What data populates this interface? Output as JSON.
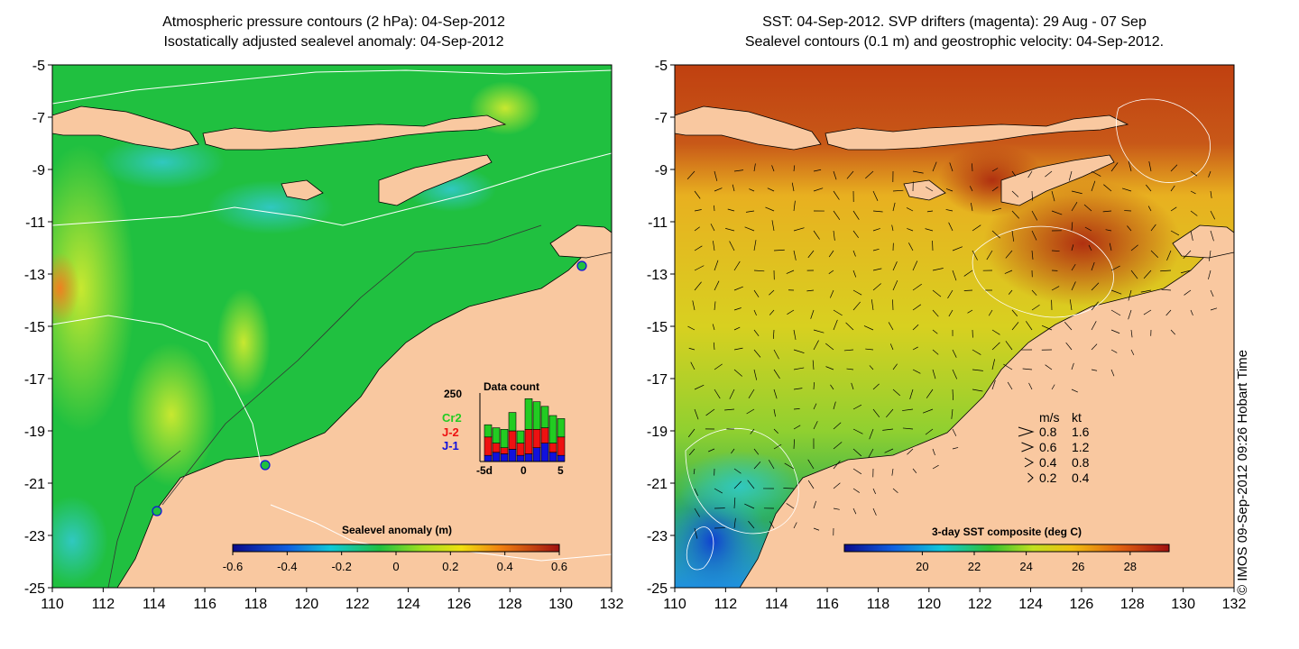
{
  "left_panel": {
    "title_line1": "Atmospheric pressure contours (2 hPa): 04-Sep-2012",
    "title_line2": "Isostatically adjusted sealevel anomaly: 04-Sep-2012",
    "colorbar_label": "Sealevel anomaly (m)",
    "colorbar_ticks": [
      "-0.6",
      "-0.4",
      "-0.2",
      "0",
      "0.2",
      "0.4",
      "0.6"
    ],
    "data_count": {
      "title": "Data count",
      "ymax_label": "250",
      "x_ticks": [
        "-5d",
        "0",
        "5"
      ],
      "legend": [
        {
          "name": "Cr2",
          "color": "#22cc22"
        },
        {
          "name": "J-2",
          "color": "#ee1111"
        },
        {
          "name": "J-1",
          "color": "#1111dd"
        }
      ],
      "days": [
        -5,
        -4,
        -3,
        -2,
        -1,
        0,
        1,
        2,
        3,
        4
      ],
      "series": [
        {
          "name": "J-1",
          "values": [
            20,
            30,
            25,
            40,
            20,
            25,
            45,
            60,
            30,
            20
          ]
        },
        {
          "name": "J-2",
          "values": [
            60,
            30,
            20,
            60,
            40,
            80,
            60,
            50,
            30,
            60
          ]
        },
        {
          "name": "Cr2",
          "values": [
            40,
            50,
            60,
            60,
            40,
            100,
            90,
            70,
            90,
            60
          ]
        }
      ]
    }
  },
  "right_panel": {
    "title_line1": "SST: 04-Sep-2012. SVP drifters (magenta): 29 Aug - 07 Sep",
    "title_line2": "Sealevel contours (0.1 m) and geostrophic velocity: 04-Sep-2012.",
    "colorbar_label": "3-day SST composite (deg C)",
    "colorbar_ticks": [
      "20",
      "22",
      "24",
      "26",
      "28"
    ],
    "speed_legend": {
      "header_ms": "m/s",
      "header_kt": "kt",
      "rows": [
        {
          "ms": "0.8",
          "kt": "1.6"
        },
        {
          "ms": "0.6",
          "kt": "1.2"
        },
        {
          "ms": "0.4",
          "kt": "0.8"
        },
        {
          "ms": "0.2",
          "kt": "0.4"
        }
      ]
    }
  },
  "axes": {
    "lon_ticks": [
      "110",
      "112",
      "114",
      "116",
      "118",
      "120",
      "122",
      "124",
      "126",
      "128",
      "130",
      "132"
    ],
    "lat_ticks": [
      "-5",
      "-7",
      "-9",
      "-11",
      "-13",
      "-15",
      "-17",
      "-19",
      "-21",
      "-23",
      "-25"
    ],
    "lon_range": [
      110,
      132
    ],
    "lat_range": [
      -25,
      -5
    ]
  },
  "copyright": "© IMOS 09-Sep-2012 09:26 Hobart Time",
  "colors": {
    "land": "#f9c8a0",
    "ssl_mid": "#20c040",
    "sst_warm": "#c85010"
  }
}
